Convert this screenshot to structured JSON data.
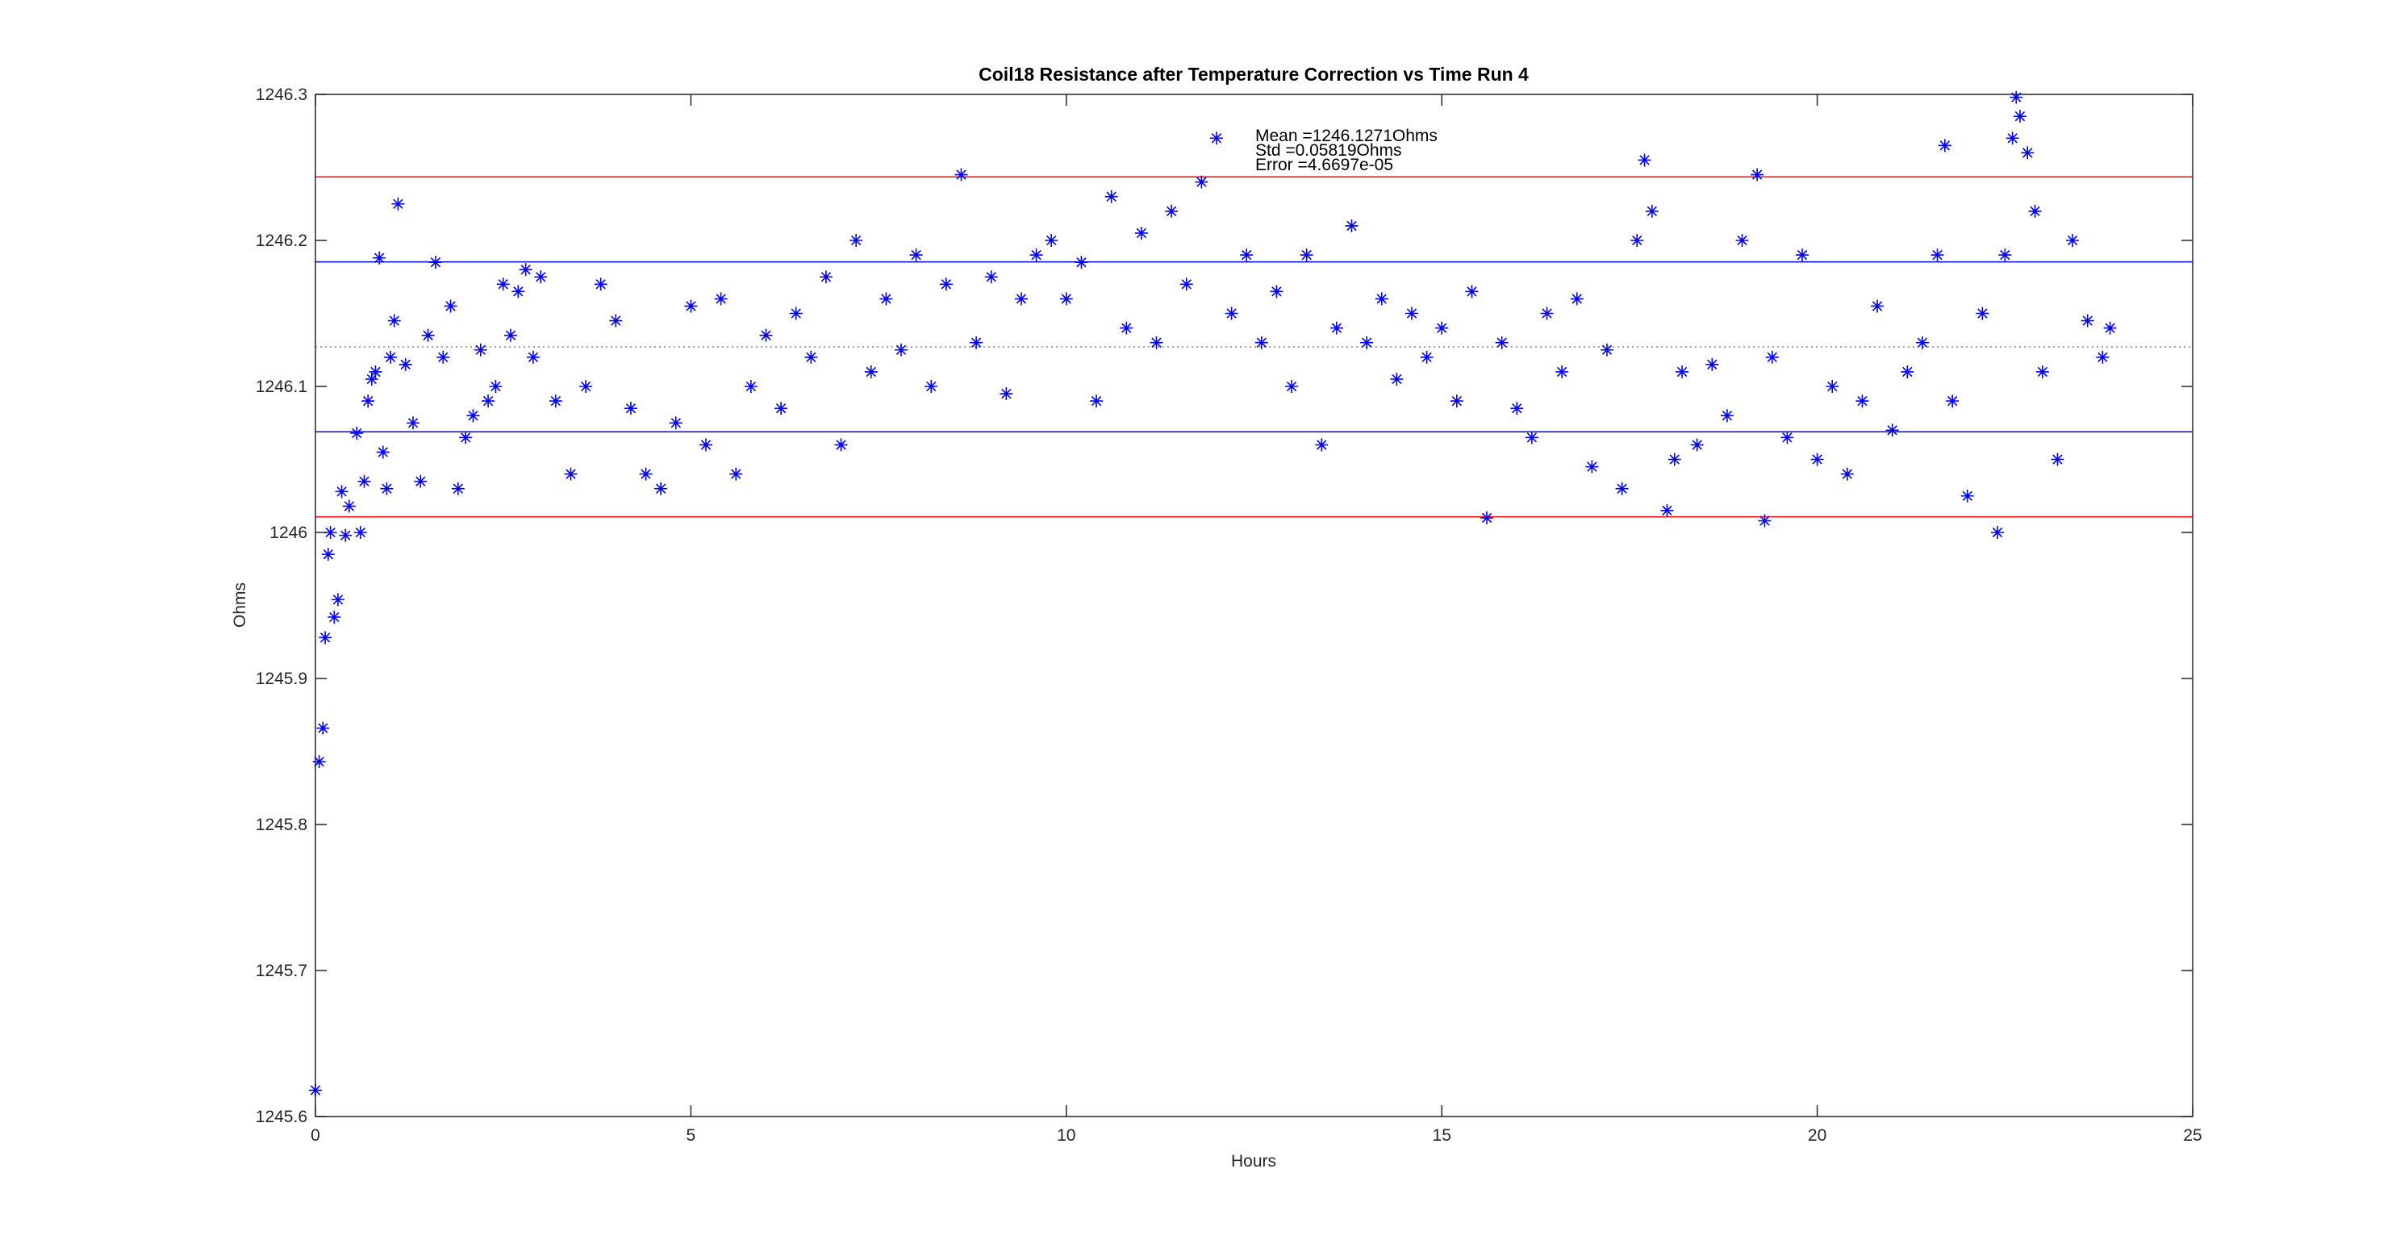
{
  "chart_data": {
    "type": "scatter",
    "title": "Coil18 Resistance after Temperature Correction vs Time Run 4",
    "xlabel": "Hours",
    "ylabel": "Ohms",
    "annotations": [
      "Mean =1246.1271Ohms",
      "Std =0.05819Ohms",
      "Error =4.6697e-05"
    ],
    "xlim": [
      0,
      25
    ],
    "xticks": [
      0,
      5,
      10,
      15,
      20,
      25
    ],
    "ylim": [
      1245.6,
      1246.3
    ],
    "yticks": [
      1245.6,
      1245.7,
      1245.8,
      1245.9,
      1246,
      1246.1,
      1246.2,
      1246.3
    ],
    "hlines": [
      {
        "value": 1246.2435,
        "color": "#ff0000",
        "style": "solid"
      },
      {
        "value": 1246.1853,
        "color": "#0000ff",
        "style": "solid"
      },
      {
        "value": 1246.1271,
        "color": "#888888",
        "style": "dotted"
      },
      {
        "value": 1246.0689,
        "color": "#0000ff",
        "style": "solid"
      },
      {
        "value": 1246.0107,
        "color": "#ff0000",
        "style": "solid"
      }
    ],
    "color": "#0000ff",
    "marker": "asterisk",
    "x": [
      0.0,
      0.05,
      0.1,
      0.13,
      0.17,
      0.2,
      0.25,
      0.3,
      0.35,
      0.4,
      0.45,
      0.55,
      0.6,
      0.65,
      0.7,
      0.75,
      0.8,
      0.85,
      0.9,
      0.95,
      1.0,
      1.05,
      1.1,
      1.2,
      1.3,
      1.4,
      1.5,
      1.6,
      1.7,
      1.8,
      1.9,
      2.0,
      2.1,
      2.2,
      2.3,
      2.4,
      2.5,
      2.6,
      2.7,
      2.8,
      2.9,
      3.0,
      3.2,
      3.4,
      3.6,
      3.8,
      4.0,
      4.2,
      4.4,
      4.6,
      4.8,
      5.0,
      5.2,
      5.4,
      5.6,
      5.8,
      6.0,
      6.2,
      6.4,
      6.6,
      6.8,
      7.0,
      7.2,
      7.4,
      7.6,
      7.8,
      8.0,
      8.2,
      8.4,
      8.6,
      8.8,
      9.0,
      9.2,
      9.4,
      9.6,
      9.8,
      10.0,
      10.2,
      10.4,
      10.6,
      10.8,
      11.0,
      11.2,
      11.4,
      11.6,
      11.8,
      12.0,
      12.2,
      12.4,
      12.6,
      12.8,
      13.0,
      13.2,
      13.4,
      13.6,
      13.8,
      14.0,
      14.2,
      14.4,
      14.6,
      14.8,
      15.0,
      15.2,
      15.4,
      15.6,
      15.8,
      16.0,
      16.2,
      16.4,
      16.6,
      16.8,
      17.0,
      17.2,
      17.4,
      17.6,
      17.7,
      17.8,
      18.0,
      18.1,
      18.2,
      18.4,
      18.6,
      18.8,
      19.0,
      19.2,
      19.3,
      19.4,
      19.6,
      19.8,
      20.0,
      20.2,
      20.4,
      20.6,
      20.8,
      21.0,
      21.2,
      21.4,
      21.6,
      21.7,
      21.8,
      22.0,
      22.2,
      22.4,
      22.5,
      22.6,
      22.65,
      22.7,
      22.8,
      22.9,
      23.0,
      23.2,
      23.4,
      23.6,
      23.8,
      23.9
    ],
    "values": [
      1245.618,
      1245.843,
      1245.866,
      1245.928,
      1245.985,
      1246.0,
      1245.942,
      1245.954,
      1246.028,
      1245.998,
      1246.018,
      1246.068,
      1246.0,
      1246.035,
      1246.09,
      1246.105,
      1246.11,
      1246.188,
      1246.055,
      1246.03,
      1246.12,
      1246.145,
      1246.225,
      1246.115,
      1246.075,
      1246.035,
      1246.135,
      1246.185,
      1246.12,
      1246.155,
      1246.03,
      1246.065,
      1246.08,
      1246.125,
      1246.09,
      1246.1,
      1246.17,
      1246.135,
      1246.165,
      1246.18,
      1246.12,
      1246.175,
      1246.09,
      1246.04,
      1246.1,
      1246.17,
      1246.145,
      1246.085,
      1246.04,
      1246.03,
      1246.075,
      1246.155,
      1246.06,
      1246.16,
      1246.04,
      1246.1,
      1246.135,
      1246.085,
      1246.15,
      1246.12,
      1246.175,
      1246.06,
      1246.2,
      1246.11,
      1246.16,
      1246.125,
      1246.19,
      1246.1,
      1246.17,
      1246.245,
      1246.13,
      1246.175,
      1246.095,
      1246.16,
      1246.19,
      1246.2,
      1246.16,
      1246.185,
      1246.09,
      1246.23,
      1246.14,
      1246.205,
      1246.13,
      1246.22,
      1246.17,
      1246.24,
      1246.27,
      1246.15,
      1246.19,
      1246.13,
      1246.165,
      1246.1,
      1246.19,
      1246.06,
      1246.14,
      1246.21,
      1246.13,
      1246.16,
      1246.105,
      1246.15,
      1246.12,
      1246.14,
      1246.09,
      1246.165,
      1246.01,
      1246.13,
      1246.085,
      1246.065,
      1246.15,
      1246.11,
      1246.16,
      1246.045,
      1246.125,
      1246.03,
      1246.2,
      1246.255,
      1246.22,
      1246.015,
      1246.05,
      1246.11,
      1246.06,
      1246.115,
      1246.08,
      1246.2,
      1246.245,
      1246.008,
      1246.12,
      1246.065,
      1246.19,
      1246.05,
      1246.1,
      1246.04,
      1246.09,
      1246.155,
      1246.07,
      1246.11,
      1246.13,
      1246.19,
      1246.265,
      1246.09,
      1246.025,
      1246.15,
      1246.0,
      1246.19,
      1246.27,
      1246.298,
      1246.285,
      1246.26,
      1246.22,
      1246.11,
      1246.05,
      1246.2,
      1246.145,
      1246.12,
      1246.14
    ]
  }
}
